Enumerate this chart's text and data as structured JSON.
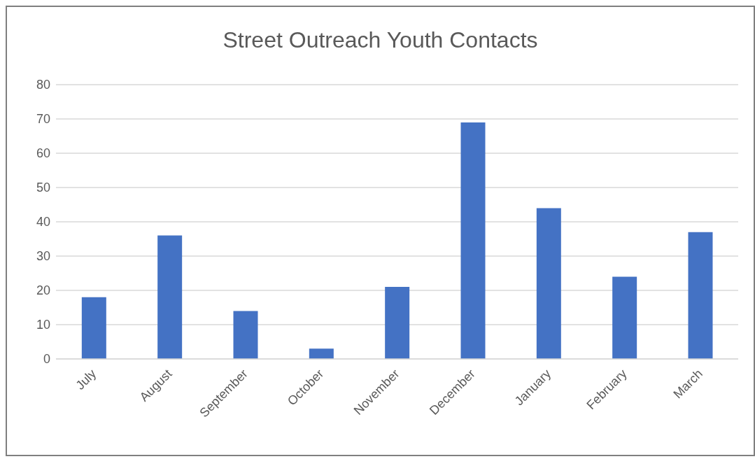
{
  "chart_data": {
    "type": "bar",
    "title": "Street Outreach Youth Contacts",
    "categories": [
      "July",
      "August",
      "September",
      "October",
      "November",
      "December",
      "January",
      "February",
      "March"
    ],
    "values": [
      18,
      36,
      14,
      3,
      21,
      69,
      44,
      24,
      37
    ],
    "color": "#4472c4",
    "ylim": [
      0,
      80
    ],
    "yticks": [
      0,
      10,
      20,
      30,
      40,
      50,
      60,
      70,
      80
    ],
    "grid": "y"
  }
}
